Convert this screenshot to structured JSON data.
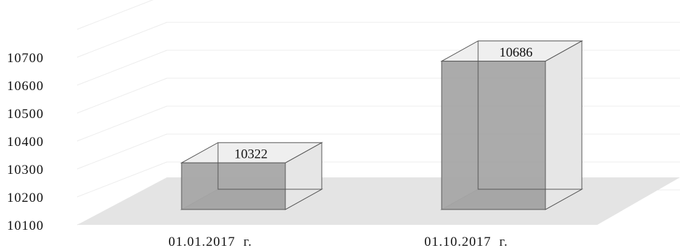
{
  "chart_data": {
    "type": "bar",
    "title": "",
    "xlabel": "",
    "ylabel": "",
    "categories": [
      "01.01.2017  г.",
      "01.10.2017  г."
    ],
    "values": [
      10322,
      10686
    ],
    "data_labels": [
      "10322",
      "10686"
    ],
    "ylim": [
      10100,
      10700
    ],
    "yticks": [
      10100,
      10200,
      10300,
      10400,
      10500,
      10600,
      10700
    ],
    "ytick_labels": [
      "10100",
      "10200",
      "10300",
      "10400",
      "10500",
      "10600",
      "10700"
    ],
    "grid": true,
    "legend": "none",
    "style": "3d-box",
    "colors": {
      "bar_front": "#a6a6a6",
      "bar_side": "#e6e6e6",
      "bar_top": "#efefef",
      "bar_stroke": "#555555",
      "floor": "#e4e4e4",
      "gridline": "#ececec"
    }
  }
}
